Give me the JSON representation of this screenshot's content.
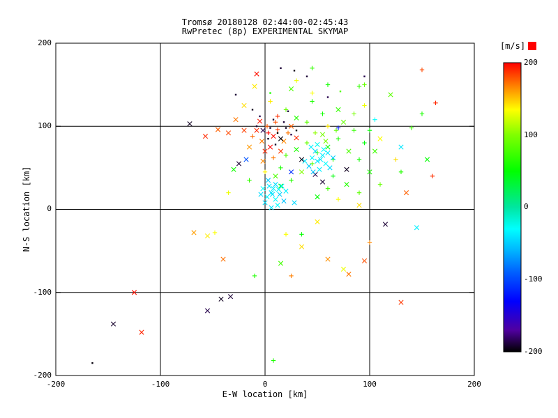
{
  "title": {
    "line1": "Tromsø 20180128 02:44:00-02:45:43",
    "line2": "RwPretec (8p) EXPERIMENTAL SKYMAP"
  },
  "colors": {
    "background": "#ffffff",
    "axis": "#000000",
    "overflow_marker": "#ff0000"
  },
  "chart_data": {
    "type": "scatter",
    "title": "Tromsø 20180128 02:44:00-02:45:43",
    "subtitle": "RwPretec (8p) EXPERIMENTAL SKYMAP",
    "xlabel": "E-W location [km]",
    "ylabel": "N-S location [km]",
    "xlim": [
      -200,
      200
    ],
    "ylim": [
      -200,
      200
    ],
    "grid": true,
    "x_tick_labels": [
      "-200",
      "-100",
      "0",
      "100",
      "200"
    ],
    "y_tick_labels": [
      "200",
      "100",
      "0",
      "-100",
      "-200"
    ],
    "colorbar": {
      "label": "[m/s]",
      "min": -200,
      "max": 200,
      "tick_labels": [
        "200",
        "100",
        "0",
        "-100",
        "-200"
      ],
      "position": "right"
    },
    "colormap_stops": [
      {
        "v": -200,
        "color": "#000000"
      },
      {
        "v": -170,
        "color": "#5000a0"
      },
      {
        "v": -130,
        "color": "#0000ff"
      },
      {
        "v": -90,
        "color": "#0060ff"
      },
      {
        "v": -60,
        "color": "#00b4ff"
      },
      {
        "v": -30,
        "color": "#00ffff"
      },
      {
        "v": 0,
        "color": "#00e6a0"
      },
      {
        "v": 50,
        "color": "#00ff00"
      },
      {
        "v": 100,
        "color": "#80ff00"
      },
      {
        "v": 135,
        "color": "#ffff00"
      },
      {
        "v": 165,
        "color": "#ff8c00"
      },
      {
        "v": 200,
        "color": "#ff0000"
      }
    ],
    "points_format": [
      "x_km",
      "y_km",
      "velocity_ms",
      "marker"
    ],
    "points": [
      [
        -8,
        95,
        190,
        "x"
      ],
      [
        2,
        100,
        178,
        "+"
      ],
      [
        8,
        88,
        196,
        "x"
      ],
      [
        -3,
        82,
        170,
        "x"
      ],
      [
        12,
        96,
        186,
        "+"
      ],
      [
        5,
        75,
        200,
        "x"
      ],
      [
        -12,
        88,
        174,
        "+"
      ],
      [
        18,
        82,
        166,
        "x"
      ],
      [
        0,
        70,
        190,
        "x"
      ],
      [
        10,
        105,
        180,
        "+"
      ],
      [
        -5,
        106,
        194,
        "x"
      ],
      [
        22,
        92,
        170,
        "+"
      ],
      [
        15,
        70,
        186,
        "x"
      ],
      [
        -15,
        75,
        162,
        "x"
      ],
      [
        3,
        92,
        198,
        "+"
      ],
      [
        25,
        100,
        176,
        "x"
      ],
      [
        -20,
        95,
        184,
        "x"
      ],
      [
        8,
        62,
        170,
        "+"
      ],
      [
        30,
        86,
        190,
        "x"
      ],
      [
        -2,
        58,
        166,
        "x"
      ],
      [
        -35,
        92,
        182,
        "x"
      ],
      [
        -45,
        96,
        176,
        "x"
      ],
      [
        -57,
        88,
        190,
        "x"
      ],
      [
        -28,
        108,
        170,
        "x"
      ],
      [
        12,
        112,
        188,
        "+"
      ],
      [
        5,
        98,
        -190,
        "."
      ],
      [
        12,
        92,
        -200,
        "."
      ],
      [
        -2,
        95,
        -186,
        "x"
      ],
      [
        20,
        98,
        -194,
        "."
      ],
      [
        8,
        108,
        -190,
        "."
      ],
      [
        15,
        85,
        -198,
        "x"
      ],
      [
        -8,
        100,
        -190,
        "."
      ],
      [
        25,
        90,
        -186,
        "."
      ],
      [
        3,
        85,
        -194,
        "."
      ],
      [
        18,
        105,
        -190,
        "."
      ],
      [
        30,
        95,
        -200,
        "."
      ],
      [
        -5,
        112,
        -186,
        "."
      ],
      [
        10,
        78,
        -192,
        "."
      ],
      [
        35,
        60,
        -196,
        "x"
      ],
      [
        -25,
        55,
        -190,
        "x"
      ],
      [
        48,
        42,
        -186,
        "x"
      ],
      [
        -72,
        103,
        -194,
        "x"
      ],
      [
        15,
        170,
        -190,
        "."
      ],
      [
        28,
        167,
        -196,
        "."
      ],
      [
        60,
        135,
        -186,
        "."
      ],
      [
        -28,
        138,
        -190,
        "."
      ],
      [
        -145,
        -138,
        -192,
        "x"
      ],
      [
        -55,
        -122,
        -186,
        "x"
      ],
      [
        -42,
        -108,
        -194,
        "x"
      ],
      [
        -33,
        -105,
        -190,
        "x"
      ],
      [
        -165,
        -185,
        -198,
        "."
      ],
      [
        115,
        -18,
        -190,
        "x"
      ],
      [
        78,
        48,
        -194,
        "x"
      ],
      [
        55,
        33,
        -190,
        "x"
      ],
      [
        22,
        118,
        -188,
        "."
      ],
      [
        -12,
        120,
        -194,
        "."
      ],
      [
        40,
        160,
        -190,
        "."
      ],
      [
        95,
        160,
        -186,
        "."
      ],
      [
        20,
        65,
        80,
        "+"
      ],
      [
        30,
        72,
        60,
        "x"
      ],
      [
        40,
        80,
        90,
        "+"
      ],
      [
        50,
        68,
        70,
        "+"
      ],
      [
        60,
        75,
        52,
        "x"
      ],
      [
        45,
        55,
        86,
        "+"
      ],
      [
        55,
        90,
        96,
        "x"
      ],
      [
        65,
        60,
        74,
        "+"
      ],
      [
        70,
        85,
        60,
        "+"
      ],
      [
        35,
        45,
        100,
        "x"
      ],
      [
        25,
        35,
        64,
        "+"
      ],
      [
        80,
        70,
        80,
        "x"
      ],
      [
        90,
        60,
        56,
        "+"
      ],
      [
        85,
        95,
        70,
        "+"
      ],
      [
        75,
        105,
        90,
        "x"
      ],
      [
        95,
        80,
        46,
        "+"
      ],
      [
        100,
        45,
        60,
        "x"
      ],
      [
        60,
        25,
        74,
        "+"
      ],
      [
        50,
        15,
        50,
        "x"
      ],
      [
        40,
        105,
        86,
        "+"
      ],
      [
        30,
        110,
        64,
        "x"
      ],
      [
        20,
        120,
        90,
        "+"
      ],
      [
        55,
        115,
        56,
        "+"
      ],
      [
        70,
        120,
        70,
        "x"
      ],
      [
        85,
        115,
        96,
        "+"
      ],
      [
        15,
        50,
        60,
        "+"
      ],
      [
        10,
        40,
        80,
        "x"
      ],
      [
        65,
        40,
        46,
        "+"
      ],
      [
        78,
        30,
        64,
        "x"
      ],
      [
        90,
        20,
        86,
        "+"
      ],
      [
        100,
        95,
        50,
        "+"
      ],
      [
        105,
        70,
        74,
        "x"
      ],
      [
        45,
        130,
        60,
        "+"
      ],
      [
        25,
        145,
        80,
        "x"
      ],
      [
        60,
        150,
        56,
        "+"
      ],
      [
        90,
        148,
        70,
        "+"
      ],
      [
        120,
        138,
        86,
        "x"
      ],
      [
        150,
        115,
        60,
        "+"
      ],
      [
        140,
        98,
        74,
        "+"
      ],
      [
        155,
        60,
        50,
        "x"
      ],
      [
        130,
        45,
        64,
        "+"
      ],
      [
        110,
        30,
        90,
        "+"
      ],
      [
        15,
        28,
        46,
        "x"
      ],
      [
        -15,
        35,
        70,
        "+"
      ],
      [
        -30,
        48,
        56,
        "x"
      ],
      [
        48,
        92,
        104,
        "+"
      ],
      [
        58,
        82,
        98,
        "x"
      ],
      [
        68,
        95,
        88,
        "+"
      ],
      [
        15,
        -65,
        76,
        "x"
      ],
      [
        35,
        -30,
        52,
        "+"
      ],
      [
        -10,
        -80,
        62,
        "+"
      ],
      [
        45,
        170,
        70,
        "+"
      ],
      [
        95,
        150,
        90,
        "+"
      ],
      [
        5,
        140,
        60,
        "."
      ],
      [
        72,
        142,
        82,
        "."
      ],
      [
        8,
        -182,
        60,
        "+"
      ],
      [
        45,
        62,
        -32,
        "x"
      ],
      [
        50,
        58,
        -40,
        "x"
      ],
      [
        55,
        65,
        -36,
        "x"
      ],
      [
        48,
        70,
        -44,
        "x"
      ],
      [
        58,
        55,
        -30,
        "x"
      ],
      [
        42,
        52,
        -50,
        "x"
      ],
      [
        52,
        48,
        -36,
        "x"
      ],
      [
        60,
        68,
        -40,
        "x"
      ],
      [
        46,
        45,
        -54,
        "x"
      ],
      [
        56,
        72,
        -30,
        "x"
      ],
      [
        62,
        50,
        -44,
        "x"
      ],
      [
        38,
        58,
        -40,
        "x"
      ],
      [
        44,
        75,
        -36,
        "x"
      ],
      [
        65,
        62,
        -50,
        "x"
      ],
      [
        50,
        78,
        -26,
        "x"
      ],
      [
        53,
        60,
        -38,
        "x"
      ],
      [
        2,
        15,
        -34,
        "x"
      ],
      [
        6,
        20,
        -40,
        "x"
      ],
      [
        10,
        12,
        -30,
        "x"
      ],
      [
        0,
        8,
        -44,
        "x"
      ],
      [
        8,
        25,
        -36,
        "x"
      ],
      [
        14,
        18,
        -50,
        "x"
      ],
      [
        4,
        28,
        -40,
        "x"
      ],
      [
        12,
        5,
        -30,
        "x"
      ],
      [
        -4,
        18,
        -44,
        "x"
      ],
      [
        16,
        28,
        -36,
        "x"
      ],
      [
        6,
        2,
        -40,
        "x"
      ],
      [
        18,
        10,
        -54,
        "x"
      ],
      [
        -2,
        25,
        -30,
        "x"
      ],
      [
        10,
        30,
        -44,
        "x"
      ],
      [
        20,
        22,
        -36,
        "x"
      ],
      [
        3,
        35,
        -50,
        "x"
      ],
      [
        7,
        18,
        -42,
        "x"
      ],
      [
        13,
        24,
        -33,
        "x"
      ],
      [
        145,
        -22,
        -36,
        "x"
      ],
      [
        130,
        75,
        -40,
        "x"
      ],
      [
        105,
        108,
        -30,
        "+"
      ],
      [
        28,
        8,
        -45,
        "x"
      ],
      [
        -55,
        -32,
        140,
        "x"
      ],
      [
        -48,
        -28,
        134,
        "+"
      ],
      [
        35,
        -45,
        144,
        "x"
      ],
      [
        75,
        -72,
        130,
        "x"
      ],
      [
        5,
        130,
        140,
        "+"
      ],
      [
        45,
        140,
        134,
        "+"
      ],
      [
        -20,
        125,
        144,
        "x"
      ],
      [
        95,
        125,
        130,
        "+"
      ],
      [
        60,
        100,
        140,
        "+"
      ],
      [
        110,
        85,
        134,
        "x"
      ],
      [
        125,
        60,
        144,
        "+"
      ],
      [
        30,
        155,
        130,
        "+"
      ],
      [
        -10,
        148,
        140,
        "x"
      ],
      [
        70,
        12,
        134,
        "+"
      ],
      [
        90,
        5,
        144,
        "x"
      ],
      [
        -35,
        20,
        130,
        "+"
      ],
      [
        50,
        -15,
        140,
        "x"
      ],
      [
        20,
        -30,
        134,
        "+"
      ],
      [
        0,
        45,
        138,
        "+"
      ],
      [
        60,
        -60,
        164,
        "x"
      ],
      [
        80,
        -78,
        170,
        "x"
      ],
      [
        -68,
        -28,
        160,
        "x"
      ],
      [
        100,
        -40,
        166,
        "+"
      ],
      [
        130,
        -112,
        186,
        "x"
      ],
      [
        -125,
        -100,
        196,
        "x"
      ],
      [
        -118,
        -148,
        190,
        "x"
      ],
      [
        95,
        -62,
        180,
        "x"
      ],
      [
        -8,
        163,
        196,
        "x"
      ],
      [
        150,
        168,
        182,
        "+"
      ],
      [
        163,
        128,
        190,
        "+"
      ],
      [
        -40,
        -60,
        172,
        "x"
      ],
      [
        25,
        -80,
        168,
        "+"
      ],
      [
        135,
        20,
        176,
        "x"
      ],
      [
        160,
        40,
        188,
        "+"
      ],
      [
        25,
        45,
        -110,
        "x"
      ],
      [
        70,
        98,
        -120,
        "+"
      ],
      [
        -18,
        60,
        -95,
        "x"
      ]
    ]
  }
}
